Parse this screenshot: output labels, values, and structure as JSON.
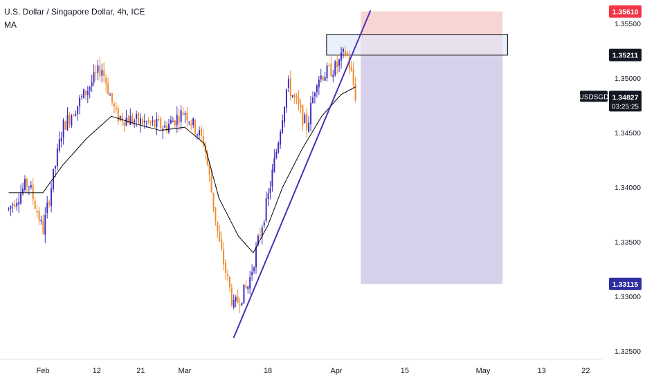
{
  "header": {
    "title": "U.S. Dollar / Singapore Dollar, 4h, ICE",
    "indicator": "MA"
  },
  "colors": {
    "up_candle": "#3d2dbf",
    "down_candle": "#f08a2c",
    "ma_line": "#000000",
    "trendline": "#4a2fb5",
    "stop_zone": "#f7c6c6",
    "target_zone": "#cfc8e8",
    "resistance_box": "#dce8fb",
    "tag_stop": "#f23645",
    "tag_dark": "#131722",
    "tag_target": "#2e2fa0"
  },
  "price_tags": {
    "stop": "1.35610",
    "entry": "1.35211",
    "current_symbol": "USDSGD",
    "current_price": "1.34827",
    "current_countdown": "03:25:25",
    "target": "1.33115"
  },
  "chart_data": {
    "type": "candlestick",
    "title": "U.S. Dollar / Singapore Dollar, 4h, ICE",
    "y_axis": {
      "range": [
        1.3241,
        1.3565
      ],
      "ticks": [
        "1.32500",
        "1.33000",
        "1.33500",
        "1.34000",
        "1.34500",
        "1.35000",
        "1.35500"
      ],
      "tick_values": [
        1.325,
        1.33,
        1.335,
        1.34,
        1.345,
        1.35,
        1.355
      ]
    },
    "x_axis": {
      "ticks": [
        "Feb",
        "12",
        "21",
        "Mar",
        "18",
        "Apr",
        "15",
        "May",
        "13",
        "22"
      ],
      "tick_dates": [
        "2024-02-01",
        "2024-02-12",
        "2024-02-21",
        "2024-03-01",
        "2024-03-18",
        "2024-04-01",
        "2024-04-15",
        "2024-05-01",
        "2024-05-13",
        "2024-05-22"
      ]
    },
    "price_series": {
      "name": "USDSGD",
      "dates": [
        "2024-01-25",
        "2024-01-29",
        "2024-02-01",
        "2024-02-05",
        "2024-02-08",
        "2024-02-13",
        "2024-02-16",
        "2024-02-21",
        "2024-02-26",
        "2024-03-01",
        "2024-03-05",
        "2024-03-08",
        "2024-03-11",
        "2024-03-14",
        "2024-03-18",
        "2024-03-20",
        "2024-03-22",
        "2024-03-26",
        "2024-03-28",
        "2024-04-01",
        "2024-04-03",
        "2024-04-04",
        "2024-04-05"
      ],
      "values": [
        1.338,
        1.3405,
        1.336,
        1.3455,
        1.3475,
        1.351,
        1.3465,
        1.346,
        1.3455,
        1.347,
        1.344,
        1.335,
        1.329,
        1.331,
        1.339,
        1.344,
        1.3495,
        1.3455,
        1.35,
        1.351,
        1.3525,
        1.3505,
        1.3482
      ]
    },
    "moving_average": {
      "name": "MA",
      "dates": [
        "2024-01-25",
        "2024-02-01",
        "2024-02-05",
        "2024-02-10",
        "2024-02-15",
        "2024-02-20",
        "2024-02-25",
        "2024-03-01",
        "2024-03-05",
        "2024-03-08",
        "2024-03-12",
        "2024-03-15",
        "2024-03-18",
        "2024-03-21",
        "2024-03-25",
        "2024-03-29",
        "2024-04-02",
        "2024-04-05"
      ],
      "values": [
        1.3395,
        1.3395,
        1.342,
        1.3445,
        1.3465,
        1.3458,
        1.3452,
        1.3455,
        1.344,
        1.339,
        1.3355,
        1.334,
        1.3365,
        1.34,
        1.3435,
        1.3465,
        1.3485,
        1.3492
      ]
    },
    "trendline": {
      "from": [
        "2024-03-11",
        1.3262
      ],
      "to": [
        "2024-04-08",
        1.3562
      ]
    },
    "annotations": {
      "resistance_zone": {
        "from_date": "2024-03-30",
        "to_date": "2024-05-06",
        "low": 1.3521,
        "high": 1.354
      },
      "short_position": {
        "from_date": "2024-04-06",
        "to_date": "2024-05-05",
        "entry": 1.35211,
        "stop": 1.3561,
        "target": 1.33115
      }
    }
  }
}
